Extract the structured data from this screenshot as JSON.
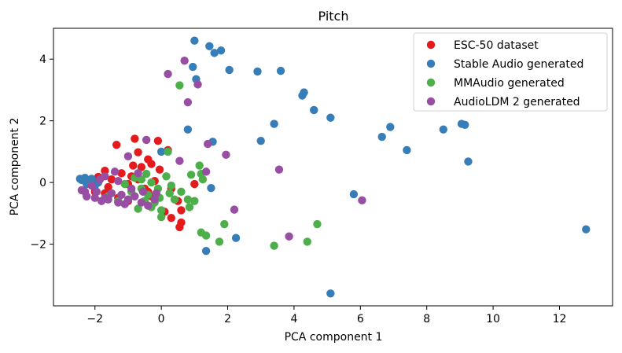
{
  "chart_data": {
    "type": "scatter",
    "title": "Pitch",
    "xlabel": "PCA component 1",
    "ylabel": "PCA component 2",
    "xlim": [
      -3.25,
      13.6
    ],
    "ylim": [
      -4.0,
      5.0
    ],
    "xticks": [
      -2,
      0,
      2,
      4,
      6,
      8,
      10,
      12
    ],
    "xtick_labels": [
      "−2",
      "0",
      "2",
      "4",
      "6",
      "8",
      "10",
      "12"
    ],
    "yticks": [
      -2,
      0,
      2,
      4
    ],
    "ytick_labels": [
      "−2",
      "0",
      "2",
      "4"
    ],
    "legend_position": "top-right",
    "series": [
      {
        "name": "ESC-50 dataset",
        "color": "#e41a1c",
        "points": [
          [
            -0.8,
            1.42
          ],
          [
            -0.1,
            1.35
          ],
          [
            -1.35,
            1.22
          ],
          [
            -0.7,
            0.98
          ],
          [
            -0.6,
            0.5
          ],
          [
            -0.4,
            0.75
          ],
          [
            -0.3,
            0.6
          ],
          [
            -0.05,
            0.42
          ],
          [
            0.2,
            1.05
          ],
          [
            -1.7,
            0.38
          ],
          [
            -1.2,
            0.3
          ],
          [
            -0.9,
            0.2
          ],
          [
            -2.1,
            0.05
          ],
          [
            -1.9,
            0.18
          ],
          [
            -1.5,
            0.1
          ],
          [
            -1.0,
            -0.05
          ],
          [
            -0.7,
            0.1
          ],
          [
            -0.5,
            -0.2
          ],
          [
            -0.2,
            0.05
          ],
          [
            -2.0,
            -0.3
          ],
          [
            -1.7,
            -0.35
          ],
          [
            -1.3,
            -0.5
          ],
          [
            -1.0,
            -0.6
          ],
          [
            -0.3,
            -0.45
          ],
          [
            0.3,
            -0.2
          ],
          [
            0.5,
            -0.6
          ],
          [
            0.6,
            -0.9
          ],
          [
            0.3,
            -1.15
          ],
          [
            0.6,
            -1.3
          ],
          [
            0.55,
            -1.45
          ],
          [
            1.0,
            -0.05
          ],
          [
            0.1,
            -0.95
          ],
          [
            -0.4,
            -0.3
          ],
          [
            -1.6,
            -0.15
          ],
          [
            -0.85,
            0.55
          ]
        ]
      },
      {
        "name": "Stable Audio generated",
        "color": "#377eb8",
        "points": [
          [
            1.0,
            4.6
          ],
          [
            1.45,
            4.42
          ],
          [
            1.6,
            4.2
          ],
          [
            1.8,
            4.28
          ],
          [
            0.95,
            3.75
          ],
          [
            2.05,
            3.65
          ],
          [
            1.05,
            3.35
          ],
          [
            2.9,
            3.6
          ],
          [
            3.6,
            3.62
          ],
          [
            4.3,
            2.92
          ],
          [
            4.25,
            2.82
          ],
          [
            4.6,
            2.35
          ],
          [
            5.1,
            2.1
          ],
          [
            3.4,
            1.9
          ],
          [
            3.0,
            1.35
          ],
          [
            6.9,
            1.8
          ],
          [
            6.65,
            1.48
          ],
          [
            7.4,
            1.05
          ],
          [
            8.5,
            1.72
          ],
          [
            9.05,
            1.9
          ],
          [
            9.15,
            1.87
          ],
          [
            9.25,
            0.68
          ],
          [
            5.8,
            -0.38
          ],
          [
            12.8,
            -1.52
          ],
          [
            2.25,
            -1.8
          ],
          [
            1.35,
            -2.22
          ],
          [
            5.1,
            -3.6
          ],
          [
            0.8,
            1.72
          ],
          [
            1.55,
            1.32
          ],
          [
            0.0,
            1.0
          ],
          [
            1.5,
            -0.18
          ],
          [
            -2.45,
            0.12
          ],
          [
            -2.35,
            0.1
          ],
          [
            -2.3,
            0.15
          ],
          [
            -2.2,
            0.05
          ],
          [
            -2.4,
            0.08
          ],
          [
            -2.1,
            0.12
          ],
          [
            -2.25,
            -0.05
          ],
          [
            -2.0,
            -0.1
          ],
          [
            -2.15,
            0.02
          ],
          [
            -1.9,
            0.0
          ]
        ]
      },
      {
        "name": "MMAudio generated",
        "color": "#4daf4a",
        "points": [
          [
            0.55,
            3.15
          ],
          [
            0.2,
            1.0
          ],
          [
            0.9,
            0.25
          ],
          [
            1.15,
            0.55
          ],
          [
            1.2,
            0.28
          ],
          [
            1.25,
            0.1
          ],
          [
            -0.45,
            0.28
          ],
          [
            -0.6,
            0.1
          ],
          [
            -0.8,
            0.15
          ],
          [
            -1.1,
            -0.05
          ],
          [
            -0.9,
            -0.3
          ],
          [
            -0.6,
            -0.2
          ],
          [
            -0.3,
            0.0
          ],
          [
            -0.1,
            -0.2
          ],
          [
            0.15,
            0.2
          ],
          [
            0.25,
            -0.35
          ],
          [
            0.4,
            -0.55
          ],
          [
            0.6,
            -0.3
          ],
          [
            0.8,
            -0.55
          ],
          [
            0.85,
            -0.8
          ],
          [
            1.0,
            -0.6
          ],
          [
            -0.5,
            -0.6
          ],
          [
            -0.3,
            -0.8
          ],
          [
            0.0,
            -0.9
          ],
          [
            0.0,
            -1.12
          ],
          [
            -0.2,
            -0.65
          ],
          [
            -1.3,
            -0.6
          ],
          [
            -1.6,
            -0.45
          ],
          [
            1.2,
            -1.62
          ],
          [
            1.35,
            -1.72
          ],
          [
            1.75,
            -1.92
          ],
          [
            1.9,
            -1.35
          ],
          [
            3.4,
            -2.05
          ],
          [
            4.4,
            -1.92
          ],
          [
            4.7,
            -1.35
          ],
          [
            -0.05,
            -0.5
          ],
          [
            -0.7,
            -0.85
          ],
          [
            0.3,
            -0.1
          ],
          [
            -0.4,
            -0.4
          ]
        ]
      },
      {
        "name": "AudioLDM 2 generated",
        "color": "#984ea3",
        "points": [
          [
            0.7,
            3.95
          ],
          [
            0.2,
            3.52
          ],
          [
            1.1,
            3.18
          ],
          [
            0.8,
            2.6
          ],
          [
            -0.45,
            1.38
          ],
          [
            1.4,
            1.25
          ],
          [
            1.95,
            0.9
          ],
          [
            -1.0,
            0.85
          ],
          [
            0.55,
            0.7
          ],
          [
            1.35,
            0.35
          ],
          [
            3.55,
            0.42
          ],
          [
            6.05,
            -0.58
          ],
          [
            2.2,
            -0.88
          ],
          [
            3.85,
            -1.75
          ],
          [
            -1.4,
            0.35
          ],
          [
            -1.7,
            0.2
          ],
          [
            -1.85,
            0.1
          ],
          [
            -2.1,
            -0.1
          ],
          [
            -2.3,
            -0.3
          ],
          [
            -2.25,
            -0.45
          ],
          [
            -2.0,
            -0.5
          ],
          [
            -1.8,
            -0.6
          ],
          [
            -1.6,
            -0.55
          ],
          [
            -1.5,
            -0.35
          ],
          [
            -1.3,
            -0.65
          ],
          [
            -1.2,
            -0.4
          ],
          [
            -1.0,
            -0.55
          ],
          [
            -0.8,
            -0.45
          ],
          [
            -0.6,
            -0.65
          ],
          [
            -0.4,
            -0.75
          ],
          [
            -0.2,
            -0.55
          ],
          [
            -2.4,
            -0.25
          ],
          [
            -1.95,
            -0.3
          ],
          [
            -1.7,
            -0.5
          ],
          [
            -1.1,
            -0.7
          ],
          [
            -0.55,
            -0.3
          ],
          [
            -0.15,
            -0.35
          ],
          [
            -0.9,
            -0.2
          ],
          [
            -1.3,
            0.05
          ],
          [
            -0.7,
            0.3
          ]
        ]
      }
    ]
  }
}
